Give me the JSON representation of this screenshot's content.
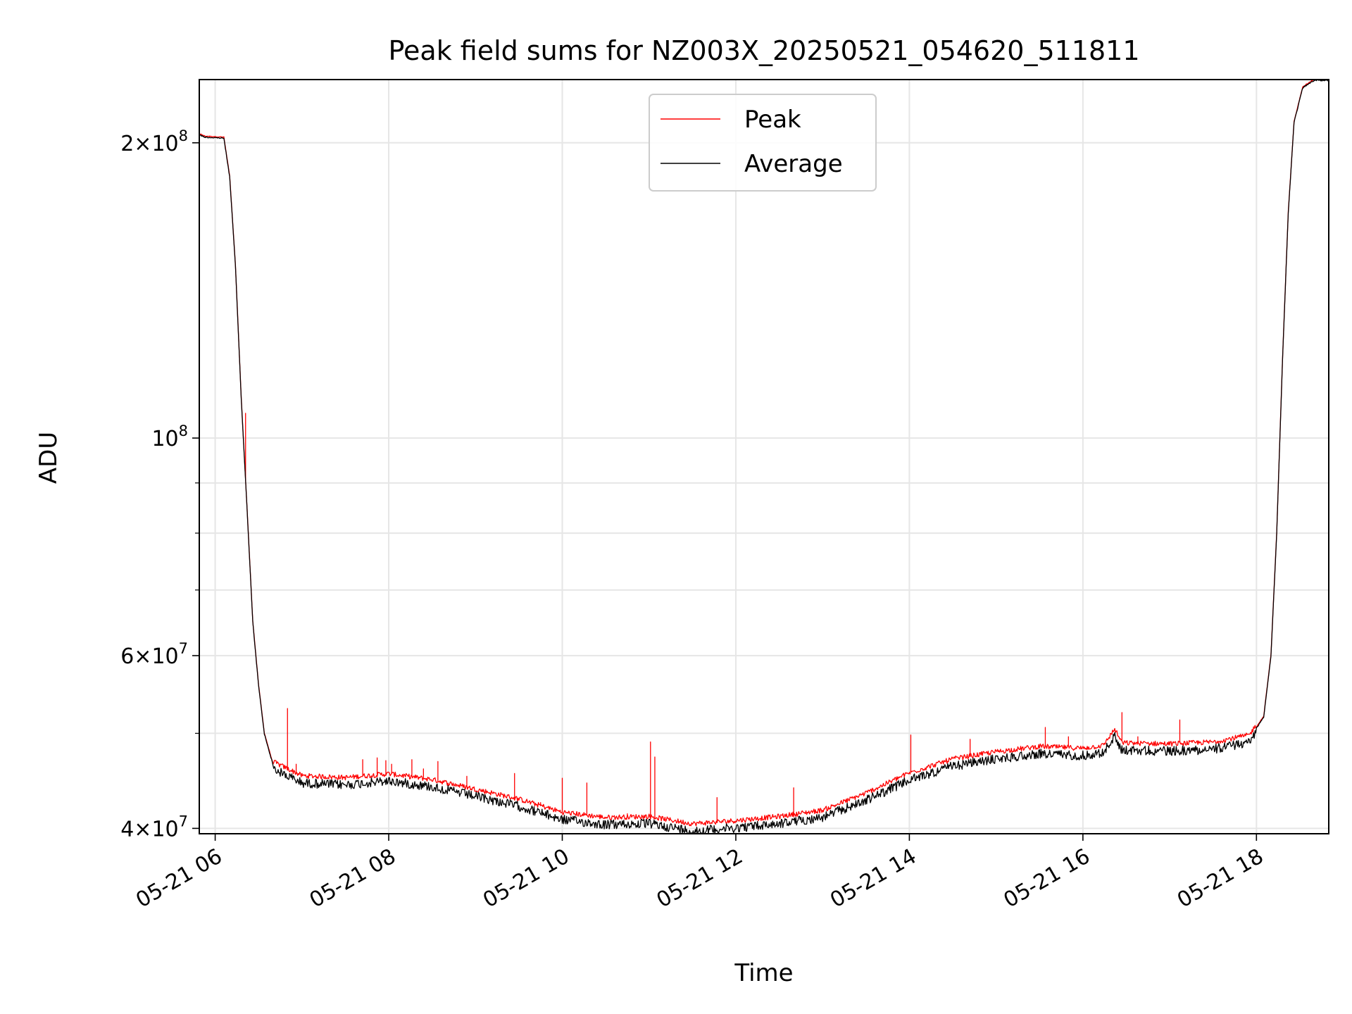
{
  "chart_data": {
    "type": "line",
    "title": "Peak field sums for NZ003X_20250521_054620_511811",
    "xlabel": "Time",
    "ylabel": "ADU",
    "yscale": "log",
    "ylim": [
      39500000,
      232000000
    ],
    "xlim": [
      "2025-05-21 05:49",
      "2025-05-21 18:50"
    ],
    "grid": true,
    "legend_position": "upper center",
    "x_ticks": [
      {
        "t": "2025-05-21 06:00",
        "label": "05-21 06"
      },
      {
        "t": "2025-05-21 08:00",
        "label": "05-21 08"
      },
      {
        "t": "2025-05-21 10:00",
        "label": "05-21 10"
      },
      {
        "t": "2025-05-21 12:00",
        "label": "05-21 12"
      },
      {
        "t": "2025-05-21 14:00",
        "label": "05-21 14"
      },
      {
        "t": "2025-05-21 16:00",
        "label": "05-21 16"
      },
      {
        "t": "2025-05-21 18:00",
        "label": "05-21 18"
      }
    ],
    "y_ticks_major": [
      {
        "value": 40000000,
        "mantissa": "4",
        "exp": "7"
      },
      {
        "value": 60000000,
        "mantissa": "6",
        "exp": "7"
      },
      {
        "value": 100000000,
        "mantissa": "",
        "exp": "8"
      },
      {
        "value": 200000000,
        "mantissa": "2",
        "exp": "8"
      }
    ],
    "y_ticks_minor": [
      50000000,
      70000000,
      80000000,
      90000000
    ],
    "series": [
      {
        "name": "Average",
        "color": "#000000",
        "points": [
          [
            "2025-05-21 05:46",
            205000000
          ],
          [
            "2025-05-21 05:53",
            203000000
          ],
          [
            "2025-05-21 06:06",
            202500000
          ],
          [
            "2025-05-21 06:10",
            185000000
          ],
          [
            "2025-05-21 06:14",
            150000000
          ],
          [
            "2025-05-21 06:18",
            110000000
          ],
          [
            "2025-05-21 06:22",
            85000000
          ],
          [
            "2025-05-21 06:26",
            65000000
          ],
          [
            "2025-05-21 06:30",
            56000000
          ],
          [
            "2025-05-21 06:34",
            50000000
          ],
          [
            "2025-05-21 06:40",
            46500000
          ],
          [
            "2025-05-21 07:00",
            45000000
          ],
          [
            "2025-05-21 07:30",
            44800000
          ],
          [
            "2025-05-21 08:00",
            45200000
          ],
          [
            "2025-05-21 08:30",
            44600000
          ],
          [
            "2025-05-21 09:00",
            43600000
          ],
          [
            "2025-05-21 09:30",
            42600000
          ],
          [
            "2025-05-21 10:00",
            41300000
          ],
          [
            "2025-05-21 10:30",
            40800000
          ],
          [
            "2025-05-21 11:00",
            40900000
          ],
          [
            "2025-05-21 11:30",
            40200000
          ],
          [
            "2025-05-21 12:00",
            40500000
          ],
          [
            "2025-05-21 12:30",
            40900000
          ],
          [
            "2025-05-21 13:00",
            41500000
          ],
          [
            "2025-05-21 13:30",
            43200000
          ],
          [
            "2025-05-21 14:00",
            45300000
          ],
          [
            "2025-05-21 14:30",
            46800000
          ],
          [
            "2025-05-21 15:00",
            47600000
          ],
          [
            "2025-05-21 15:30",
            48200000
          ],
          [
            "2025-05-21 16:00",
            48000000
          ],
          [
            "2025-05-21 16:14",
            48300000
          ],
          [
            "2025-05-21 16:22",
            50200000
          ],
          [
            "2025-05-21 16:27",
            48600000
          ],
          [
            "2025-05-21 17:00",
            48500000
          ],
          [
            "2025-05-21 17:30",
            48700000
          ],
          [
            "2025-05-21 17:55",
            49500000
          ],
          [
            "2025-05-21 18:05",
            52000000
          ],
          [
            "2025-05-21 18:10",
            60000000
          ],
          [
            "2025-05-21 18:14",
            80000000
          ],
          [
            "2025-05-21 18:18",
            120000000
          ],
          [
            "2025-05-21 18:22",
            170000000
          ],
          [
            "2025-05-21 18:26",
            210000000
          ],
          [
            "2025-05-21 18:32",
            228000000
          ],
          [
            "2025-05-21 18:40",
            232000000
          ],
          [
            "2025-05-21 18:50",
            232000000
          ]
        ]
      },
      {
        "name": "Peak",
        "color": "#ff0000",
        "spikes": [
          [
            "2025-05-21 06:21",
            106000000
          ],
          [
            "2025-05-21 06:50",
            53000000
          ],
          [
            "2025-05-21 06:56",
            46500000
          ],
          [
            "2025-05-21 07:42",
            47000000
          ],
          [
            "2025-05-21 07:52",
            47200000
          ],
          [
            "2025-05-21 07:58",
            46900000
          ],
          [
            "2025-05-21 08:02",
            46500000
          ],
          [
            "2025-05-21 08:16",
            47000000
          ],
          [
            "2025-05-21 08:24",
            46000000
          ],
          [
            "2025-05-21 08:34",
            46800000
          ],
          [
            "2025-05-21 08:54",
            45200000
          ],
          [
            "2025-05-21 09:27",
            45500000
          ],
          [
            "2025-05-21 09:45",
            42500000
          ],
          [
            "2025-05-21 10:00",
            45000000
          ],
          [
            "2025-05-21 10:17",
            44500000
          ],
          [
            "2025-05-21 10:45",
            41400000
          ],
          [
            "2025-05-21 11:01",
            49000000
          ],
          [
            "2025-05-21 11:04",
            47300000
          ],
          [
            "2025-05-21 11:47",
            43000000
          ],
          [
            "2025-05-21 12:40",
            44000000
          ],
          [
            "2025-05-21 14:01",
            49800000
          ],
          [
            "2025-05-21 14:42",
            49300000
          ],
          [
            "2025-05-21 15:34",
            50700000
          ],
          [
            "2025-05-21 15:50",
            49600000
          ],
          [
            "2025-05-21 16:27",
            52500000
          ],
          [
            "2025-05-21 16:38",
            49600000
          ],
          [
            "2025-05-21 17:07",
            51600000
          ]
        ]
      }
    ]
  }
}
